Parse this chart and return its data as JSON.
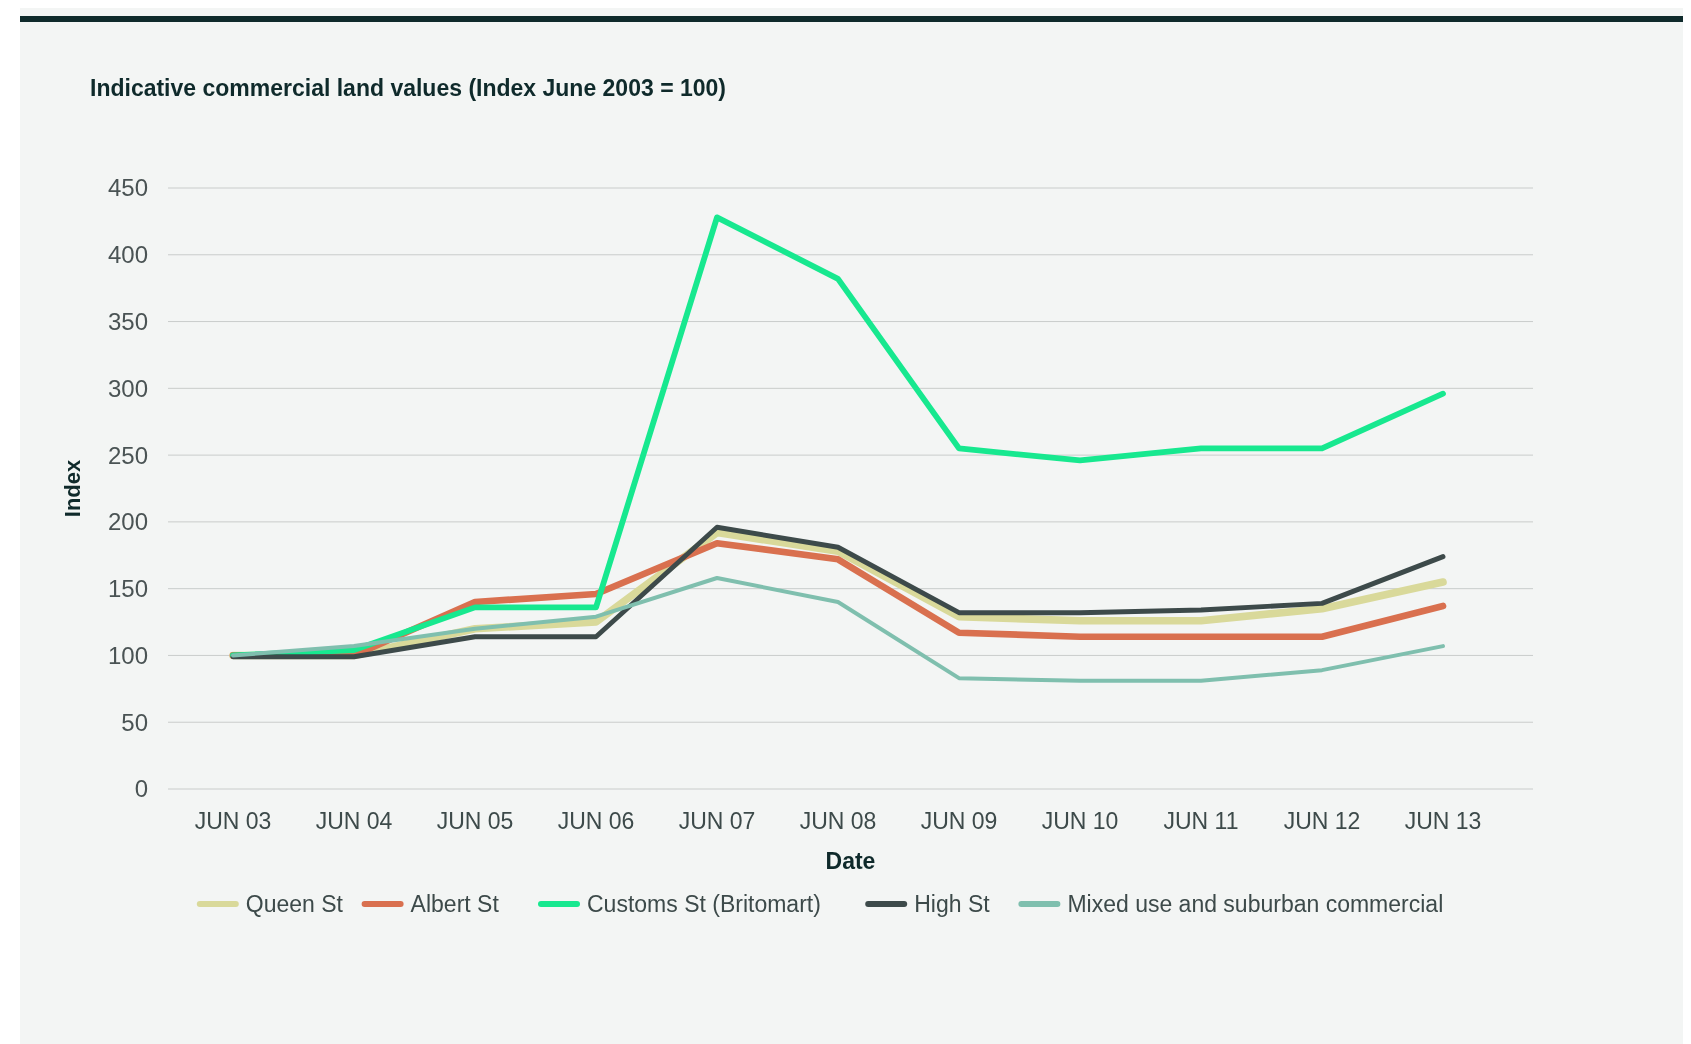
{
  "chart_data": {
    "type": "line",
    "title": "Indicative commercial land values (Index June 2003 = 100)",
    "xlabel": "Date",
    "ylabel": "Index",
    "categories": [
      "JUN 03",
      "JUN 04",
      "JUN 05",
      "JUN 06",
      "JUN 07",
      "JUN 08",
      "JUN 09",
      "JUN 10",
      "JUN 11",
      "JUN 12",
      "JUN 13"
    ],
    "series": [
      {
        "name": "Queen St",
        "color": "#d9d99a",
        "values": [
          100,
          100,
          120,
          125,
          192,
          178,
          129,
          126,
          126,
          135,
          155
        ]
      },
      {
        "name": "Albert St",
        "color": "#d9704f",
        "values": [
          100,
          100,
          140,
          146,
          184,
          172,
          117,
          114,
          114,
          114,
          137
        ]
      },
      {
        "name": "Customs St (Britomart)",
        "color": "#17e88f",
        "values": [
          100,
          104,
          136,
          136,
          428,
          382,
          255,
          246,
          255,
          255,
          296
        ]
      },
      {
        "name": "High St",
        "color": "#3d4a4a",
        "values": [
          99,
          99,
          114,
          114,
          196,
          181,
          132,
          132,
          134,
          139,
          174
        ]
      },
      {
        "name": "Mixed use and suburban commercial",
        "color": "#7fbfae",
        "values": [
          100,
          107,
          120,
          129,
          158,
          140,
          83,
          81,
          81,
          89,
          107
        ]
      }
    ],
    "ylim": [
      0,
      450
    ],
    "yticks": [
      0,
      50,
      100,
      150,
      200,
      250,
      300,
      350,
      400,
      450
    ],
    "grid": "y",
    "legend": "bottom",
    "marker": "none",
    "line_style": "solid"
  }
}
